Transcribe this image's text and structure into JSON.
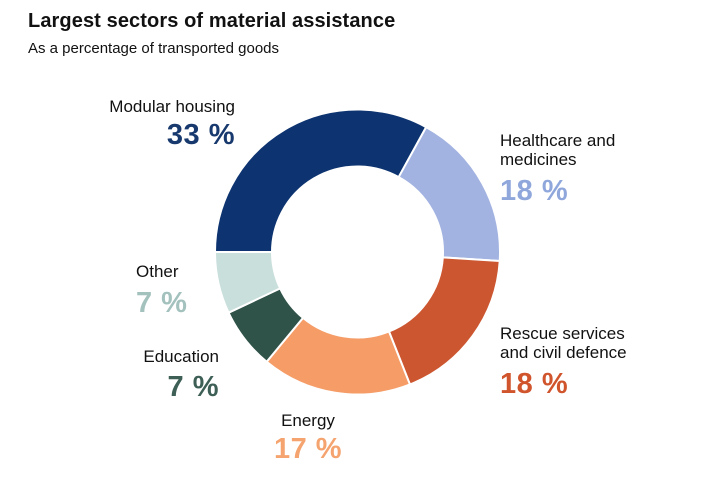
{
  "header": {
    "title": "Largest sectors of material assistance",
    "subtitle": "As a percentage of transported goods"
  },
  "chart_data": {
    "type": "pie",
    "subtype": "donut",
    "title": "Largest sectors of material assistance",
    "subtitle": "As a percentage of transported goods",
    "unit": "%",
    "start_angle_deg": 270,
    "direction": "clockwise",
    "inner_radius_ratio": 0.6,
    "segment_gap_color": "#ffffff",
    "legend_position": "around-chart",
    "segments": [
      {
        "id": "modular-housing",
        "label": "Modular housing",
        "value": 33,
        "value_label": "33 %",
        "color": "#0D3470",
        "text_color": "#17396D"
      },
      {
        "id": "healthcare-and-medicines",
        "label": "Healthcare and medicines",
        "value": 18,
        "value_label": "18 %",
        "color": "#A2B3E1",
        "text_color": "#90A7DC"
      },
      {
        "id": "rescue-services-and-civil-defence",
        "label": "Rescue services and civil defence",
        "value": 18,
        "value_label": "18 %",
        "color": "#CC5630",
        "text_color": "#D0552D"
      },
      {
        "id": "energy",
        "label": "Energy",
        "value": 17,
        "value_label": "17 %",
        "color": "#F59C67",
        "text_color": "#F5A470"
      },
      {
        "id": "education",
        "label": "Education",
        "value": 7,
        "value_label": "7 %",
        "color": "#2F5348",
        "text_color": "#3D5F55"
      },
      {
        "id": "other",
        "label": "Other",
        "value": 7,
        "value_label": "7 %",
        "color": "#C9DFDB",
        "text_color": "#A3C1BD"
      }
    ]
  }
}
